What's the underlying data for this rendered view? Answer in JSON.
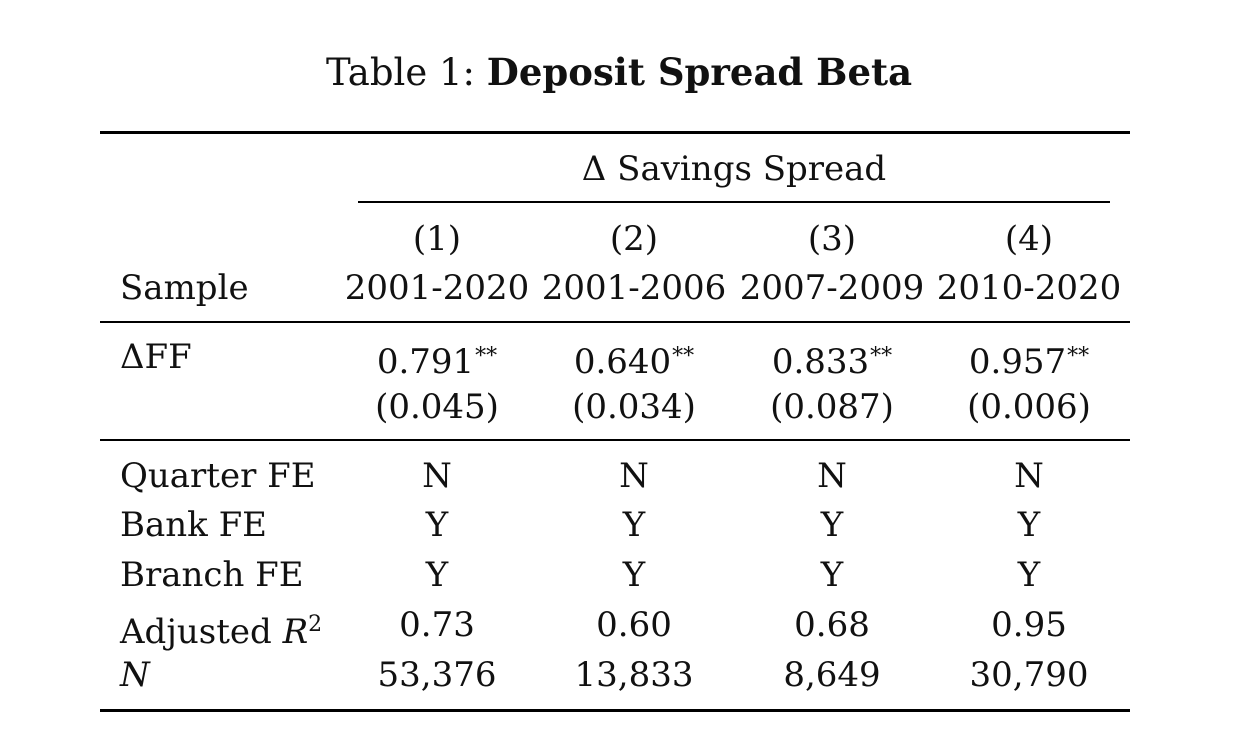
{
  "table": {
    "caption_prefix": "Table 1:",
    "caption_title": "Deposit Spread Beta",
    "group_header": "Δ Savings Spread",
    "sample_label": "Sample",
    "columns": [
      {
        "number": "(1)",
        "sample": "2001-2020"
      },
      {
        "number": "(2)",
        "sample": "2001-2006"
      },
      {
        "number": "(3)",
        "sample": "2007-2009"
      },
      {
        "number": "(4)",
        "sample": "2010-2020"
      }
    ],
    "coef_row": {
      "label": "ΔFF",
      "estimates": [
        "0.791",
        "0.640",
        "0.833",
        "0.957"
      ],
      "stars": [
        "**",
        "**",
        "**",
        "**"
      ],
      "std_errors": [
        "(0.045)",
        "(0.034)",
        "(0.087)",
        "(0.006)"
      ]
    },
    "stat_rows": [
      {
        "label": "Quarter FE",
        "values": [
          "N",
          "N",
          "N",
          "N"
        ]
      },
      {
        "label": "Bank FE",
        "values": [
          "Y",
          "Y",
          "Y",
          "Y"
        ]
      },
      {
        "label": "Branch FE",
        "values": [
          "Y",
          "Y",
          "Y",
          "Y"
        ]
      },
      {
        "label": "Adjusted ",
        "label_math": "R",
        "label_exp": "2",
        "values": [
          "0.73",
          "0.60",
          "0.68",
          "0.95"
        ]
      },
      {
        "label_math": "N",
        "values": [
          "53,376",
          "13,833",
          "8,649",
          "30,790"
        ]
      }
    ]
  }
}
